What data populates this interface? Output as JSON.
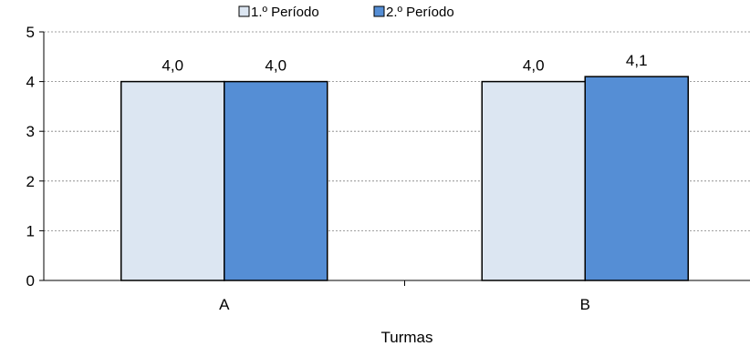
{
  "chart_data": {
    "type": "bar",
    "categories": [
      "A",
      "B"
    ],
    "series": [
      {
        "name": "1.º Período",
        "values": [
          4.0,
          4.0
        ],
        "labels": [
          "4,0",
          "4,0"
        ],
        "color": "#dce6f2"
      },
      {
        "name": "2.º Período",
        "values": [
          4.0,
          4.1
        ],
        "labels": [
          "4,0",
          "4,1"
        ],
        "color": "#558ed5"
      }
    ],
    "title": "",
    "xlabel": "Turmas",
    "ylabel": "",
    "ylim": [
      0,
      5
    ],
    "yticks": [
      0,
      1,
      2,
      3,
      4,
      5
    ],
    "grid": true,
    "legend_position": "top"
  }
}
